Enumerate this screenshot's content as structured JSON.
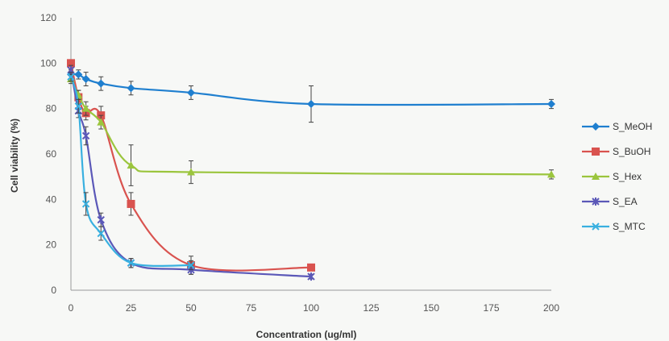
{
  "chart_data": {
    "type": "line",
    "title": "",
    "xlabel": "Concentration (ug/ml)",
    "ylabel": "Cell viability (%)",
    "xlim": [
      0,
      200
    ],
    "ylim": [
      0,
      120
    ],
    "x_ticks": [
      0,
      25,
      50,
      75,
      100,
      125,
      150,
      175,
      200
    ],
    "y_ticks": [
      0,
      20,
      40,
      60,
      80,
      100,
      120
    ],
    "grid": false,
    "legend_position": "right",
    "series": [
      {
        "name": "S_MeOH",
        "color": "#1f7fcf",
        "marker": "diamond",
        "x": [
          0,
          3.125,
          6.25,
          12.5,
          25,
          50,
          100,
          200
        ],
        "y": [
          95,
          95,
          93,
          91,
          89,
          87,
          82,
          82
        ],
        "err": [
          2,
          2,
          3,
          3,
          3,
          3,
          8,
          2
        ]
      },
      {
        "name": "S_BuOH",
        "color": "#d9534f",
        "marker": "square",
        "x": [
          0,
          3.125,
          6.25,
          12.5,
          25,
          50,
          100
        ],
        "y": [
          100,
          85,
          78,
          77,
          38,
          11,
          10
        ],
        "err": [
          1,
          3,
          3,
          4,
          5,
          4,
          1
        ]
      },
      {
        "name": "S_Hex",
        "color": "#9bc53d",
        "marker": "triangle",
        "x": [
          0,
          3.125,
          6.25,
          12.5,
          25,
          50,
          200
        ],
        "y": [
          93,
          86,
          80,
          74,
          55,
          52,
          51
        ],
        "err": [
          2,
          2,
          3,
          3,
          9,
          5,
          2
        ]
      },
      {
        "name": "S_EA",
        "color": "#5b58b8",
        "marker": "star",
        "x": [
          0,
          3.125,
          6.25,
          12.5,
          25,
          50,
          100
        ],
        "y": [
          97,
          79,
          68,
          31,
          12,
          9,
          6
        ],
        "err": [
          2,
          3,
          4,
          3,
          2,
          2,
          1
        ]
      },
      {
        "name": "S_MTC",
        "color": "#39b0e0",
        "marker": "cross",
        "x": [
          0,
          3.125,
          6.25,
          12.5,
          25,
          50
        ],
        "y": [
          94,
          81,
          38,
          25,
          12,
          11
        ],
        "err": [
          2,
          3,
          5,
          3,
          2,
          2
        ]
      }
    ]
  }
}
